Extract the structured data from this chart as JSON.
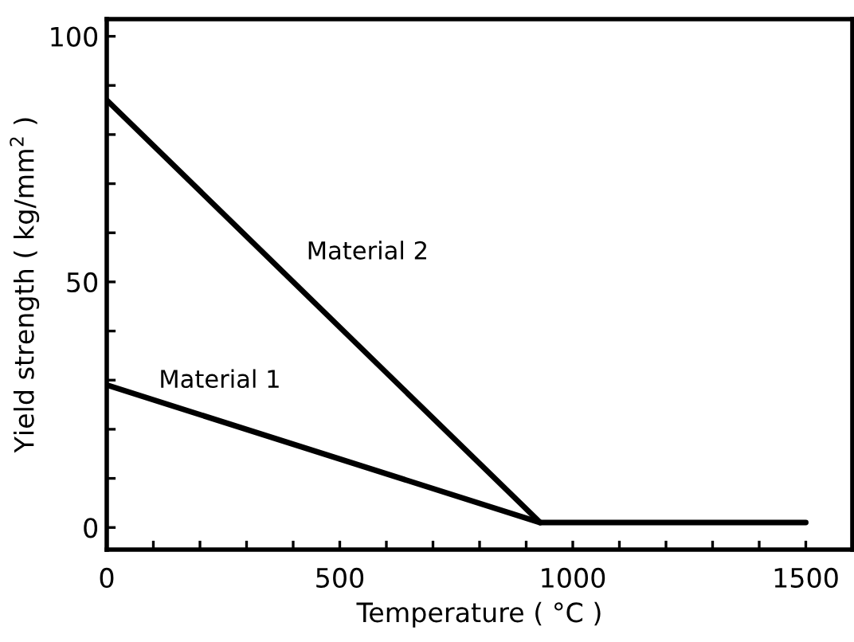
{
  "chart_data": {
    "type": "line",
    "xlabel": "Temperature ( °C )",
    "ylabel": "Yield strength ( kg/mm$^{2}$ )",
    "xlim": [
      0,
      1600
    ],
    "ylim": [
      -4.5,
      103.5
    ],
    "xticks": [
      0,
      {
        "value": 100,
        "label": null
      },
      {
        "value": 200,
        "label": null
      },
      {
        "value": 300,
        "label": null
      },
      {
        "value": 400,
        "label": null
      },
      500,
      {
        "value": 600,
        "label": null
      },
      {
        "value": 700,
        "label": null
      },
      {
        "value": 800,
        "label": null
      },
      {
        "value": 900,
        "label": null
      },
      1000,
      {
        "value": 1100,
        "label": null
      },
      {
        "value": 1200,
        "label": null
      },
      {
        "value": 1300,
        "label": null
      },
      {
        "value": 1400,
        "label": null
      },
      1500
    ],
    "yticks": [
      0,
      {
        "value": 10,
        "label": null
      },
      {
        "value": 20,
        "label": null
      },
      {
        "value": 30,
        "label": null
      },
      {
        "value": 40,
        "label": null
      },
      50,
      {
        "value": 60,
        "label": null
      },
      {
        "value": 70,
        "label": null
      },
      {
        "value": 80,
        "label": null
      },
      {
        "value": 90,
        "label": null
      },
      100
    ],
    "series": [
      {
        "name": "Material 1",
        "color": "#000000",
        "x": [
          0,
          930,
          1500
        ],
        "values": [
          29,
          1,
          1
        ]
      },
      {
        "name": "Material 2",
        "color": "#000000",
        "x": [
          0,
          930
        ],
        "values": [
          87,
          1
        ]
      }
    ],
    "grid": false,
    "legend": false,
    "marker": "none",
    "line_style": "solid"
  }
}
